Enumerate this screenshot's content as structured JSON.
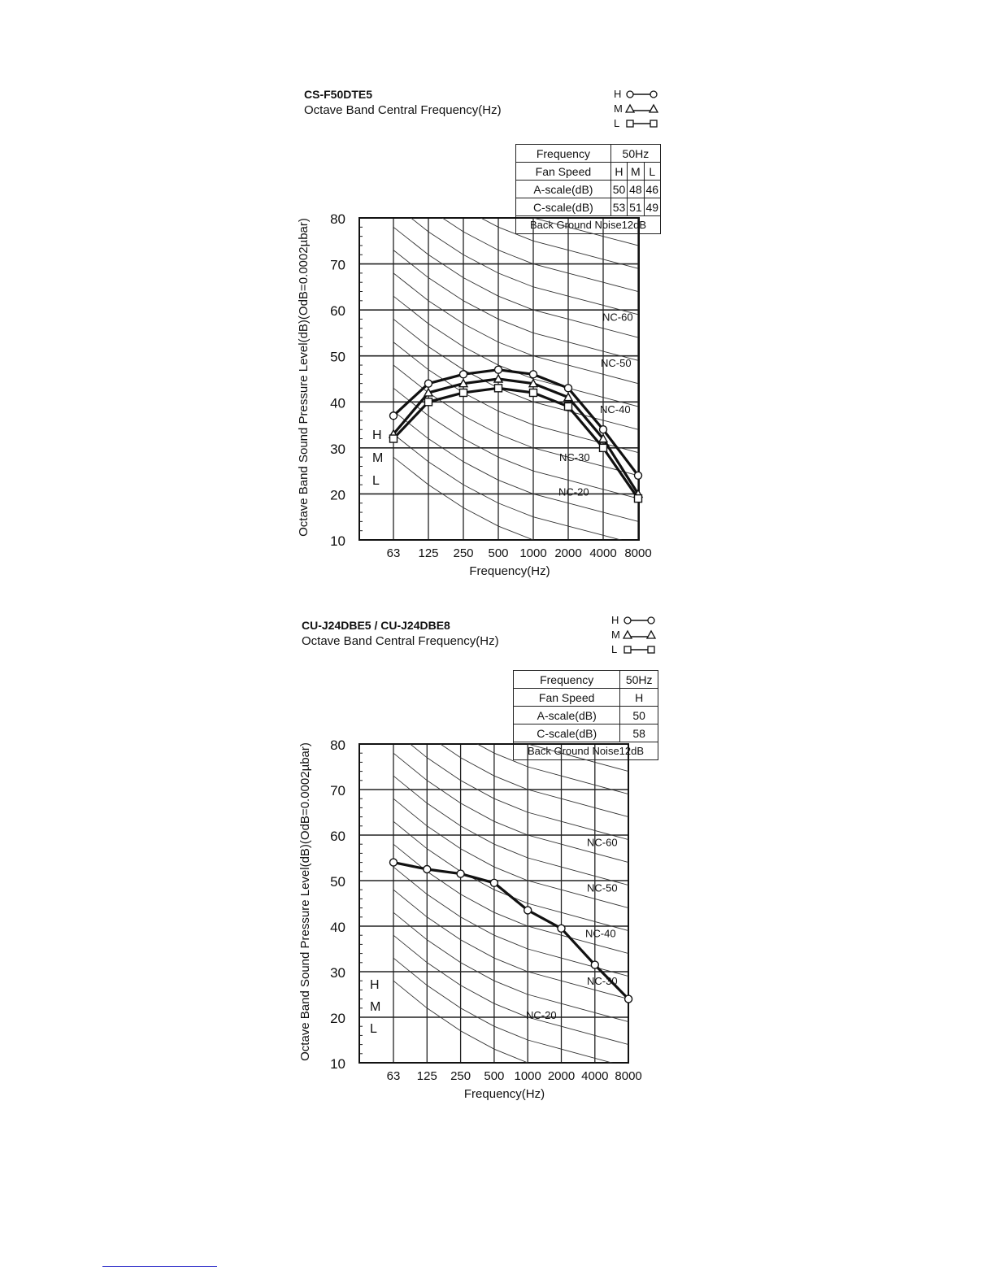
{
  "charts": [
    {
      "id": "top",
      "title": "CS-F50DTE5",
      "subtitle": "Octave Band Central Frequency(Hz)",
      "legend": [
        {
          "label": "H",
          "marker": "circle"
        },
        {
          "label": "M",
          "marker": "triangle"
        },
        {
          "label": "L",
          "marker": "square"
        }
      ],
      "table": {
        "frequency_label": "Frequency",
        "frequency_value": "50Hz",
        "fan_speed_label": "Fan Speed",
        "fan_speeds": [
          "H",
          "M",
          "L"
        ],
        "a_scale_label": "A-scale(dB)",
        "a_scale": [
          "50",
          "48",
          "46"
        ],
        "c_scale_label": "C-scale(dB)",
        "c_scale": [
          "53",
          "51",
          "49"
        ],
        "note": "Back Ground Noise12dB"
      },
      "side_letters": [
        "H",
        "M",
        "L"
      ]
    },
    {
      "id": "bottom",
      "title": "CU-J24DBE5 / CU-J24DBE8",
      "subtitle": "Octave Band Central Frequency(Hz)",
      "legend": [
        {
          "label": "H",
          "marker": "circle"
        },
        {
          "label": "M",
          "marker": "triangle"
        },
        {
          "label": "L",
          "marker": "square"
        }
      ],
      "table": {
        "frequency_label": "Frequency",
        "frequency_value": "50Hz",
        "fan_speed_label": "Fan Speed",
        "fan_speeds": [
          "H"
        ],
        "a_scale_label": "A-scale(dB)",
        "a_scale": [
          "50"
        ],
        "c_scale_label": "C-scale(dB)",
        "c_scale": [
          "58"
        ],
        "note": "Back Ground Noise12dB"
      },
      "side_letters": [
        "H",
        "M",
        "L"
      ]
    }
  ],
  "chart_data": [
    {
      "type": "line",
      "title": "CS-F50DTE5",
      "subtitle": "Octave Band Central Frequency(Hz)",
      "xlabel": "Frequency(Hz)",
      "ylabel": "Octave Band Sound Pressure Level(dB)(OdB=0.0002µbar)",
      "categories": [
        "63",
        "125",
        "250",
        "500",
        "1000",
        "2000",
        "4000",
        "8000"
      ],
      "ylim": [
        10,
        80
      ],
      "yticks": [
        10,
        20,
        30,
        40,
        50,
        60,
        70,
        80
      ],
      "grid": true,
      "legend_position": "top-right",
      "series": [
        {
          "name": "H",
          "marker": "circle",
          "values": [
            37,
            44,
            46,
            47,
            46,
            43,
            34,
            24
          ]
        },
        {
          "name": "M",
          "marker": "triangle",
          "values": [
            33,
            42,
            44,
            45,
            44,
            41,
            32,
            20
          ]
        },
        {
          "name": "L",
          "marker": "square",
          "values": [
            32,
            40,
            42,
            43,
            42,
            39,
            30,
            19
          ]
        }
      ],
      "nc_labels": [
        "NC-60",
        "NC-50",
        "NC-40",
        "NC-30",
        "NC-20"
      ]
    },
    {
      "type": "line",
      "title": "CU-J24DBE5 / CU-J24DBE8",
      "subtitle": "Octave Band Central Frequency(Hz)",
      "xlabel": "Frequency(Hz)",
      "ylabel": "Octave Band Sound Pressure Level(dB)(OdB=0.0002µbar)",
      "categories": [
        "63",
        "125",
        "250",
        "500",
        "1000",
        "2000",
        "4000",
        "8000"
      ],
      "ylim": [
        10,
        80
      ],
      "yticks": [
        10,
        20,
        30,
        40,
        50,
        60,
        70,
        80
      ],
      "grid": true,
      "legend_position": "top-right",
      "series": [
        {
          "name": "H",
          "marker": "circle",
          "values": [
            54,
            52.5,
            51.5,
            49.5,
            43.5,
            39.5,
            31.5,
            24
          ]
        }
      ],
      "nc_labels": [
        "NC-60",
        "NC-50",
        "NC-40",
        "NC-30",
        "NC-20"
      ]
    }
  ]
}
